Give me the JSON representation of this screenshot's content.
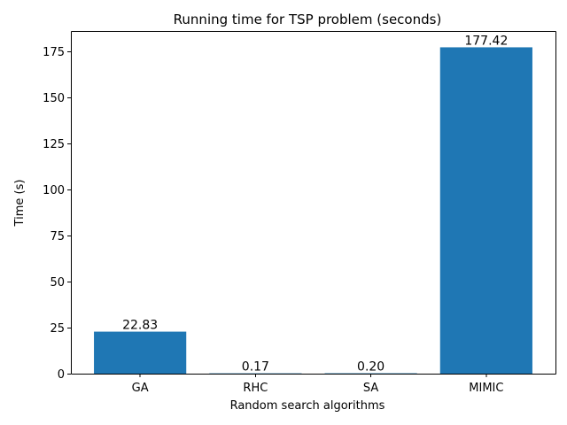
{
  "chart_data": {
    "type": "bar",
    "title": "Running time for TSP problem (seconds)",
    "xlabel": "Random search algorithms",
    "ylabel": "Time (s)",
    "categories": [
      "GA",
      "RHC",
      "SA",
      "MIMIC"
    ],
    "values": [
      22.83,
      0.17,
      0.2,
      177.42
    ],
    "data_labels": [
      "22.83",
      "0.17",
      "0.20",
      "177.42"
    ],
    "ylim": [
      0,
      186.291
    ],
    "yticks": [
      0,
      25,
      50,
      75,
      100,
      125,
      150,
      175
    ],
    "ytick_labels": [
      "0",
      "25",
      "50",
      "75",
      "100",
      "125",
      "150",
      "175"
    ],
    "bar_color": "#1f77b4",
    "grid": false,
    "legend": "none"
  }
}
